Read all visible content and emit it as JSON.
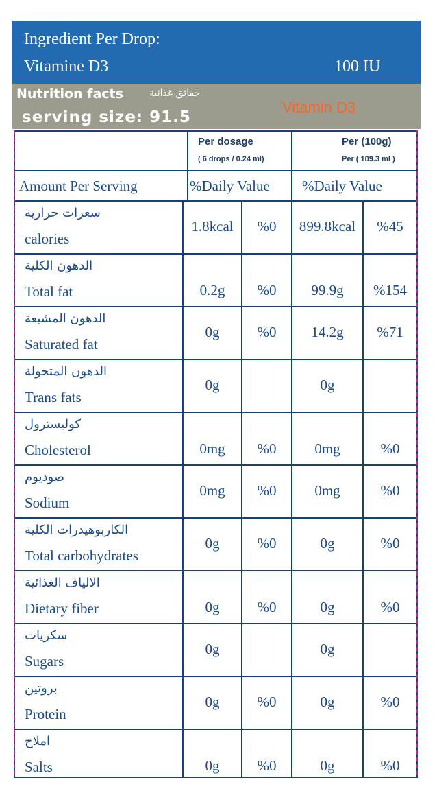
{
  "header": {
    "title": "Ingredient Per Drop:",
    "ingredient": "Vitamine D3",
    "amount": "100 IU"
  },
  "banner": {
    "nutrition_facts": "Nutrition facts",
    "nutrition_facts_ar": "حقائق غذائية",
    "serving_size": "serving size: 91.5",
    "product": "Vitamin D3"
  },
  "table": {
    "col1_title": "Per dosage",
    "col1_sub": "( 6 drops / 0.24 ml)",
    "col2_title": "Per (100g)",
    "col2_sub": "Per ( 109.3 ml )",
    "amount_label": "Amount Per Serving",
    "dv1": "%Daily Value",
    "dv2": "%Daily Value",
    "rows": [
      {
        "ar": "سعرات حرارية",
        "en": "calories",
        "a1": "1.8kcal",
        "p1": "%0",
        "a2": "899.8kcal",
        "p2": "%45"
      },
      {
        "ar": "الدهون الكلية",
        "en": "Total fat",
        "a1": "0.2g",
        "p1": "%0",
        "a2": "99.9g",
        "p2": "%154"
      },
      {
        "ar": "الدهون المشبعة",
        "en": "Saturated fat",
        "a1": "0g",
        "p1": "%0",
        "a2": "14.2g",
        "p2": "%71"
      },
      {
        "ar": "الدهون المتحولة",
        "en": "Trans fats",
        "a1": "0g",
        "p1": "",
        "a2": "0g",
        "p2": ""
      },
      {
        "ar": "كوليسترول",
        "en": "Cholesterol",
        "a1": "0mg",
        "p1": "%0",
        "a2": "0mg",
        "p2": "%0"
      },
      {
        "ar": "صوديوم",
        "en": "Sodium",
        "a1": "0mg",
        "p1": "%0",
        "a2": "0mg",
        "p2": "%0"
      },
      {
        "ar": "الكاربوهيدرات الكلية",
        "en": "Total carbohydrates",
        "a1": "0g",
        "p1": "%0",
        "a2": "0g",
        "p2": "%0"
      },
      {
        "ar": "الالياف الغذائية",
        "en": "Dietary fiber",
        "a1": "0g",
        "p1": "%0",
        "a2": "0g",
        "p2": "%0"
      },
      {
        "ar": "سكريات",
        "en": "Sugars",
        "a1": "0g",
        "p1": "",
        "a2": "0g",
        "p2": ""
      },
      {
        "ar": "بروتين",
        "en": "Protein",
        "a1": "0g",
        "p1": "%0",
        "a2": "0g",
        "p2": "%0"
      },
      {
        "ar": "املاح",
        "en": "Salts",
        "a1": "0g",
        "p1": "%0",
        "a2": "0g",
        "p2": "%0"
      }
    ]
  },
  "colors": {
    "header_blue": "#236bb0",
    "banner_grey": "#9b9b8e",
    "accent_orange": "#f26a2a",
    "table_text": "#1a4a8a"
  }
}
